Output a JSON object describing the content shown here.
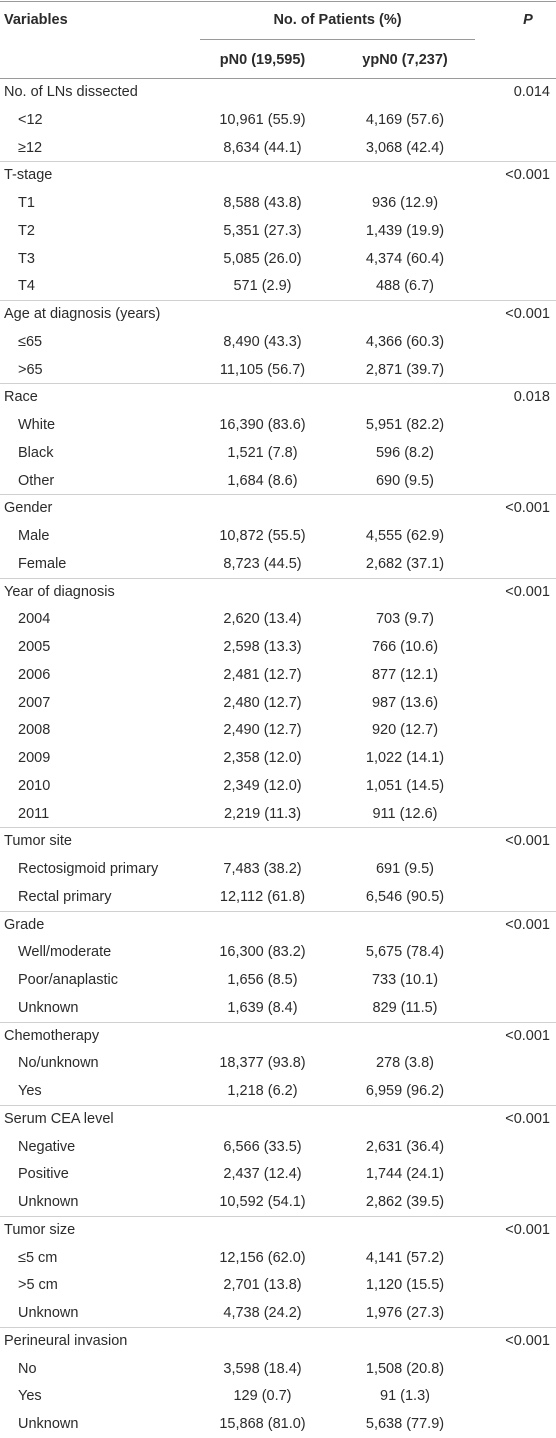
{
  "header": {
    "variables": "Variables",
    "group": "No. of Patients (%)",
    "p": "P",
    "col1": "pN0 (19,595)",
    "col2": "ypN0 (7,237)"
  },
  "groups": [
    {
      "label": "No. of LNs dissected",
      "p": "0.014",
      "items": [
        [
          "<12",
          "10,961 (55.9)",
          "4,169 (57.6)"
        ],
        [
          "≥12",
          "8,634 (44.1)",
          "3,068 (42.4)"
        ]
      ]
    },
    {
      "label": "T-stage",
      "p": "<0.001",
      "items": [
        [
          "T1",
          "8,588 (43.8)",
          "936 (12.9)"
        ],
        [
          "T2",
          "5,351 (27.3)",
          "1,439 (19.9)"
        ],
        [
          "T3",
          "5,085 (26.0)",
          "4,374 (60.4)"
        ],
        [
          "T4",
          "571 (2.9)",
          "488 (6.7)"
        ]
      ]
    },
    {
      "label": "Age at diagnosis (years)",
      "p": "<0.001",
      "items": [
        [
          "≤65",
          "8,490 (43.3)",
          "4,366 (60.3)"
        ],
        [
          ">65",
          "11,105 (56.7)",
          "2,871 (39.7)"
        ]
      ]
    },
    {
      "label": "Race",
      "p": "0.018",
      "items": [
        [
          "White",
          "16,390 (83.6)",
          "5,951 (82.2)"
        ],
        [
          "Black",
          "1,521 (7.8)",
          "596 (8.2)"
        ],
        [
          "Other",
          "1,684 (8.6)",
          "690 (9.5)"
        ]
      ]
    },
    {
      "label": "Gender",
      "p": "<0.001",
      "items": [
        [
          "Male",
          "10,872 (55.5)",
          "4,555 (62.9)"
        ],
        [
          "Female",
          "8,723 (44.5)",
          "2,682 (37.1)"
        ]
      ]
    },
    {
      "label": "Year of diagnosis",
      "p": "<0.001",
      "items": [
        [
          "2004",
          "2,620 (13.4)",
          "703 (9.7)"
        ],
        [
          "2005",
          "2,598 (13.3)",
          "766 (10.6)"
        ],
        [
          "2006",
          "2,481 (12.7)",
          "877 (12.1)"
        ],
        [
          "2007",
          "2,480 (12.7)",
          "987 (13.6)"
        ],
        [
          "2008",
          "2,490 (12.7)",
          "920 (12.7)"
        ],
        [
          "2009",
          "2,358 (12.0)",
          "1,022 (14.1)"
        ],
        [
          "2010",
          "2,349 (12.0)",
          "1,051 (14.5)"
        ],
        [
          "2011",
          "2,219 (11.3)",
          "911 (12.6)"
        ]
      ]
    },
    {
      "label": "Tumor site",
      "p": "<0.001",
      "items": [
        [
          "Rectosigmoid primary",
          "7,483 (38.2)",
          "691 (9.5)"
        ],
        [
          "Rectal primary",
          "12,112 (61.8)",
          "6,546 (90.5)"
        ]
      ]
    },
    {
      "label": "Grade",
      "p": "<0.001",
      "items": [
        [
          "Well/moderate",
          "16,300 (83.2)",
          "5,675 (78.4)"
        ],
        [
          "Poor/anaplastic",
          "1,656 (8.5)",
          "733 (10.1)"
        ],
        [
          "Unknown",
          "1,639 (8.4)",
          "829 (11.5)"
        ]
      ]
    },
    {
      "label": "Chemotherapy",
      "p": "<0.001",
      "items": [
        [
          "No/unknown",
          "18,377 (93.8)",
          "278 (3.8)"
        ],
        [
          "Yes",
          "1,218 (6.2)",
          "6,959 (96.2)"
        ]
      ]
    },
    {
      "label": "Serum CEA level",
      "p": "<0.001",
      "items": [
        [
          "Negative",
          "6,566 (33.5)",
          "2,631 (36.4)"
        ],
        [
          "Positive",
          "2,437 (12.4)",
          "1,744 (24.1)"
        ],
        [
          "Unknown",
          "10,592 (54.1)",
          "2,862 (39.5)"
        ]
      ]
    },
    {
      "label": "Tumor size",
      "p": "<0.001",
      "items": [
        [
          "≤5 cm",
          "12,156 (62.0)",
          "4,141 (57.2)"
        ],
        [
          ">5 cm",
          "2,701 (13.8)",
          "1,120 (15.5)"
        ],
        [
          "Unknown",
          "4,738 (24.2)",
          "1,976 (27.3)"
        ]
      ]
    },
    {
      "label": "Perineural invasion",
      "p": "<0.001",
      "items": [
        [
          "No",
          "3,598 (18.4)",
          "1,508 (20.8)"
        ],
        [
          "Yes",
          "129 (0.7)",
          "91 (1.3)"
        ],
        [
          "Unknown",
          "15,868 (81.0)",
          "5,638 (77.9)"
        ]
      ]
    }
  ]
}
